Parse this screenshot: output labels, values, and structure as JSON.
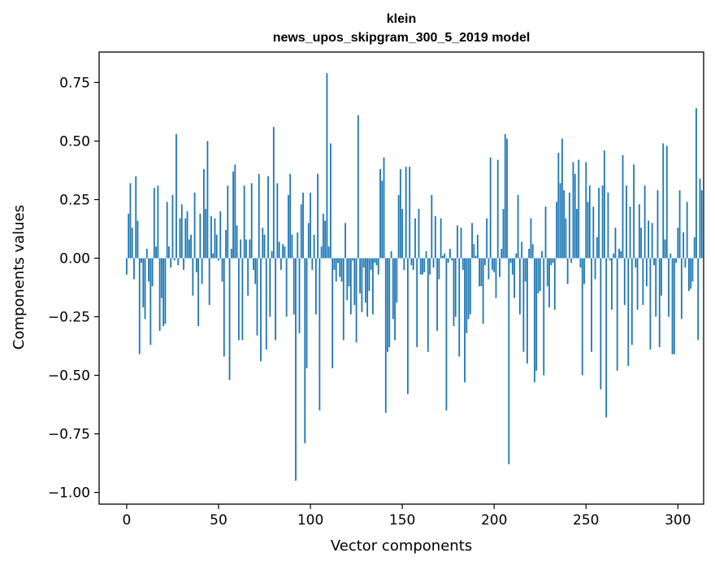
{
  "chart_data": {
    "type": "bar",
    "title": "klein",
    "subtitle": "news_upos_skipgram_300_5_2019 model",
    "xlabel": "Vector components",
    "ylabel": "Components values",
    "xlim": [
      -15,
      314
    ],
    "ylim": [
      -1.05,
      0.88
    ],
    "x_ticks": [
      0,
      50,
      100,
      150,
      200,
      250,
      300
    ],
    "x_tick_labels": [
      "0",
      "50",
      "100",
      "150",
      "200",
      "250",
      "300"
    ],
    "y_ticks": [
      0.75,
      0.5,
      0.25,
      0.0,
      -0.25,
      -0.5,
      -0.75,
      -1.0
    ],
    "y_tick_labels": [
      "0.75",
      "0.50",
      "0.25",
      "0.00",
      "−0.25",
      "−0.50",
      "−0.75",
      "−1.00"
    ],
    "grid": false,
    "bar_color": "#1f77b4",
    "values": [
      -0.07,
      0.19,
      0.32,
      0.13,
      -0.09,
      0.35,
      0.16,
      -0.41,
      -0.02,
      -0.21,
      -0.26,
      0.04,
      -0.1,
      -0.37,
      -0.12,
      0.3,
      0.05,
      0.31,
      -0.31,
      -0.17,
      -0.29,
      -0.28,
      0.24,
      0.05,
      -0.04,
      0.27,
      -0.01,
      0.53,
      -0.03,
      0.17,
      0.23,
      -0.05,
      0.17,
      0.2,
      0.08,
      0.1,
      -0.16,
      0.28,
      -0.06,
      -0.29,
      0.19,
      -0.11,
      0.38,
      0.21,
      0.5,
      -0.2,
      0.18,
      0.02,
      0.17,
      0.1,
      -0.01,
      0.2,
      -0.1,
      -0.42,
      0.12,
      0.31,
      -0.52,
      0.04,
      0.37,
      0.4,
      0.14,
      -0.35,
      0.08,
      -0.35,
      0.31,
      0.08,
      -0.16,
      0.08,
      0.32,
      -0.05,
      -0.11,
      -0.33,
      0.36,
      -0.44,
      0.13,
      0.1,
      -0.39,
      0.35,
      -0.25,
      0.03,
      0.56,
      -0.35,
      0.32,
      0.07,
      -0.05,
      0.06,
      0.05,
      -0.25,
      0.27,
      0.36,
      0.1,
      -0.24,
      -0.95,
      0.11,
      -0.32,
      0.23,
      0.28,
      -0.79,
      -0.47,
      0.15,
      0.28,
      -0.05,
      0.1,
      -0.24,
      0.36,
      -0.65,
      0.05,
      0.19,
      0.16,
      0.79,
      0.05,
      0.49,
      -0.47,
      -0.05,
      -0.1,
      -0.02,
      -0.08,
      -0.1,
      -0.35,
      0.15,
      -0.18,
      -0.12,
      -0.24,
      -0.01,
      -0.2,
      -0.36,
      0.61,
      -0.15,
      -0.23,
      -0.04,
      -0.19,
      -0.25,
      -0.14,
      -0.05,
      -0.24,
      -0.02,
      -0.03,
      -0.07,
      0.38,
      0.33,
      0.43,
      -0.66,
      -0.4,
      -0.38,
      0.03,
      -0.26,
      -0.35,
      -0.19,
      0.27,
      0.38,
      0.21,
      -0.05,
      0.39,
      -0.58,
      0.39,
      -0.03,
      -0.05,
      0.17,
      -0.38,
      0.21,
      -0.07,
      -0.07,
      -0.06,
      0.03,
      -0.4,
      -0.07,
      0.27,
      -0.04,
      0.18,
      -0.31,
      -0.09,
      0.17,
      0.01,
      0.02,
      -0.65,
      -0.02,
      0.04,
      -0.01,
      -0.29,
      -0.25,
      0.14,
      -0.42,
      0.13,
      -0.05,
      -0.53,
      -0.32,
      -0.26,
      -0.24,
      0.15,
      0.06,
      0.01,
      0.1,
      -0.12,
      -0.12,
      -0.28,
      -0.03,
      0.17,
      -0.09,
      0.43,
      -0.05,
      -0.06,
      -0.17,
      0.42,
      -0.08,
      0.04,
      0.21,
      0.53,
      0.51,
      -0.88,
      -0.02,
      -0.07,
      -0.17,
      0.02,
      0.27,
      -0.24,
      0.07,
      -0.4,
      -0.1,
      -0.45,
      0.04,
      0.17,
      0.06,
      -0.53,
      -0.48,
      -0.15,
      -0.14,
      0.03,
      -0.5,
      0.22,
      -0.12,
      -0.21,
      -0.03,
      -0.02,
      -0.22,
      0.24,
      0.45,
      0.32,
      0.51,
      0.29,
      0.17,
      -0.11,
      0.28,
      -0.02,
      0.41,
      0.36,
      0.21,
      0.42,
      -0.04,
      -0.5,
      -0.11,
      0.41,
      0.24,
      0.31,
      -0.4,
      0.22,
      -0.09,
      0.09,
      0.3,
      -0.56,
      0.31,
      0.46,
      -0.68,
      0.28,
      -0.01,
      -0.22,
      0.02,
      0.13,
      -0.48,
      0.04,
      0.03,
      0.44,
      -0.2,
      0.31,
      -0.46,
      0.22,
      -0.37,
      0.4,
      -0.04,
      -0.22,
      0.23,
      0.13,
      -0.2,
      0.31,
      -0.12,
      0.16,
      -0.39,
      0.15,
      -0.03,
      -0.25,
      0.29,
      -0.38,
      -0.16,
      0.49,
      0.08,
      0.48,
      -0.25,
      0.02,
      -0.41,
      -0.41,
      -0.02,
      0.13,
      0.29,
      -0.26,
      0.11,
      -0.04,
      0.24,
      -0.14,
      -0.13,
      -0.1,
      0.09,
      0.64,
      -0.35,
      0.34,
      0.29
    ]
  }
}
